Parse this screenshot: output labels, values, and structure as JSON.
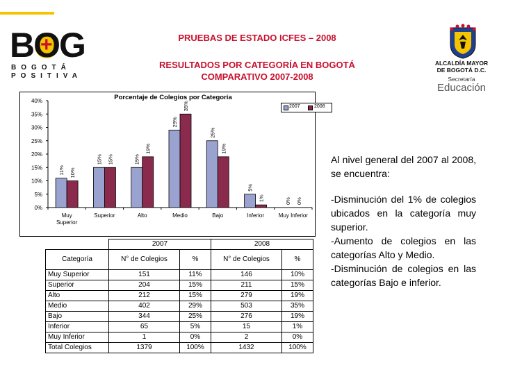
{
  "logo": {
    "word": "BOG",
    "line1": "BOGOTÁ",
    "line2": "POSITIVA"
  },
  "header": {
    "title1": "PRUEBAS DE ESTADO ICFES – 2008",
    "title2": "RESULTADOS POR CATEGORÍA EN BOGOTÁ",
    "title3": "COMPARATIVO 2007-2008"
  },
  "institution": {
    "line1": "ALCALDÍA MAYOR",
    "line2": "DE BOGOTÁ D.C.",
    "line3": "Secretaría",
    "line4": "Educación"
  },
  "colors": {
    "accent": "#c8102e",
    "yellow": "#f5c400",
    "bar_2007": "#9aa2cf",
    "bar_2008": "#8a2a4c"
  },
  "chart_data": {
    "type": "bar",
    "title": "Porcentaje de Colegios por Categoría",
    "categories": [
      "Muy Superior",
      "Superior",
      "Alto",
      "Medio",
      "Bajo",
      "Inferior",
      "Muy Inferior"
    ],
    "series": [
      {
        "name": "2007",
        "values": [
          11,
          15,
          15,
          29,
          25,
          5,
          0
        ],
        "labels": [
          "11%",
          "15%",
          "15%",
          "29%",
          "25%",
          "5%",
          "0%"
        ]
      },
      {
        "name": "2008",
        "values": [
          10,
          15,
          19,
          35,
          19,
          1,
          0
        ],
        "labels": [
          "10%",
          "15%",
          "19%",
          "35%",
          "19%",
          "1%",
          "0%"
        ]
      }
    ],
    "ylim": [
      0,
      40
    ],
    "yticks": [
      "0%",
      "5%",
      "10%",
      "15%",
      "20%",
      "25%",
      "30%",
      "35%",
      "40%"
    ],
    "ytick_values": [
      0,
      5,
      10,
      15,
      20,
      25,
      30,
      35,
      40
    ],
    "legend_position": "top-right",
    "grid": false
  },
  "table": {
    "year_headers": [
      "2007",
      "2008"
    ],
    "col_category": "Categoría",
    "col_count": "N° de Colegios",
    "col_pct": "%",
    "rows": [
      {
        "cat": "Muy Superior",
        "n07": "151",
        "p07": "11%",
        "n08": "146",
        "p08": "10%"
      },
      {
        "cat": "Superior",
        "n07": "204",
        "p07": "15%",
        "n08": "211",
        "p08": "15%"
      },
      {
        "cat": "Alto",
        "n07": "212",
        "p07": "15%",
        "n08": "279",
        "p08": "19%"
      },
      {
        "cat": "Medio",
        "n07": "402",
        "p07": "29%",
        "n08": "503",
        "p08": "35%"
      },
      {
        "cat": "Bajo",
        "n07": "344",
        "p07": "25%",
        "n08": "276",
        "p08": "19%"
      },
      {
        "cat": "Inferior",
        "n07": "65",
        "p07": "5%",
        "n08": "15",
        "p08": "1%"
      },
      {
        "cat": "Muy Inferior",
        "n07": "1",
        "p07": "0%",
        "n08": "2",
        "p08": "0%"
      },
      {
        "cat": "Total Colegios",
        "n07": "1379",
        "p07": "100%",
        "n08": "1432",
        "p08": "100%"
      }
    ]
  },
  "summary": {
    "intro": "Al nivel general del 2007 al 2008, se encuentra:",
    "bullets": [
      "-Disminución del 1% de colegios ubicados en la categoría muy superior.",
      "-Aumento de colegios en las categorías Alto y Medio.",
      "-Disminución de colegios en las categorías Bajo e inferior."
    ]
  }
}
